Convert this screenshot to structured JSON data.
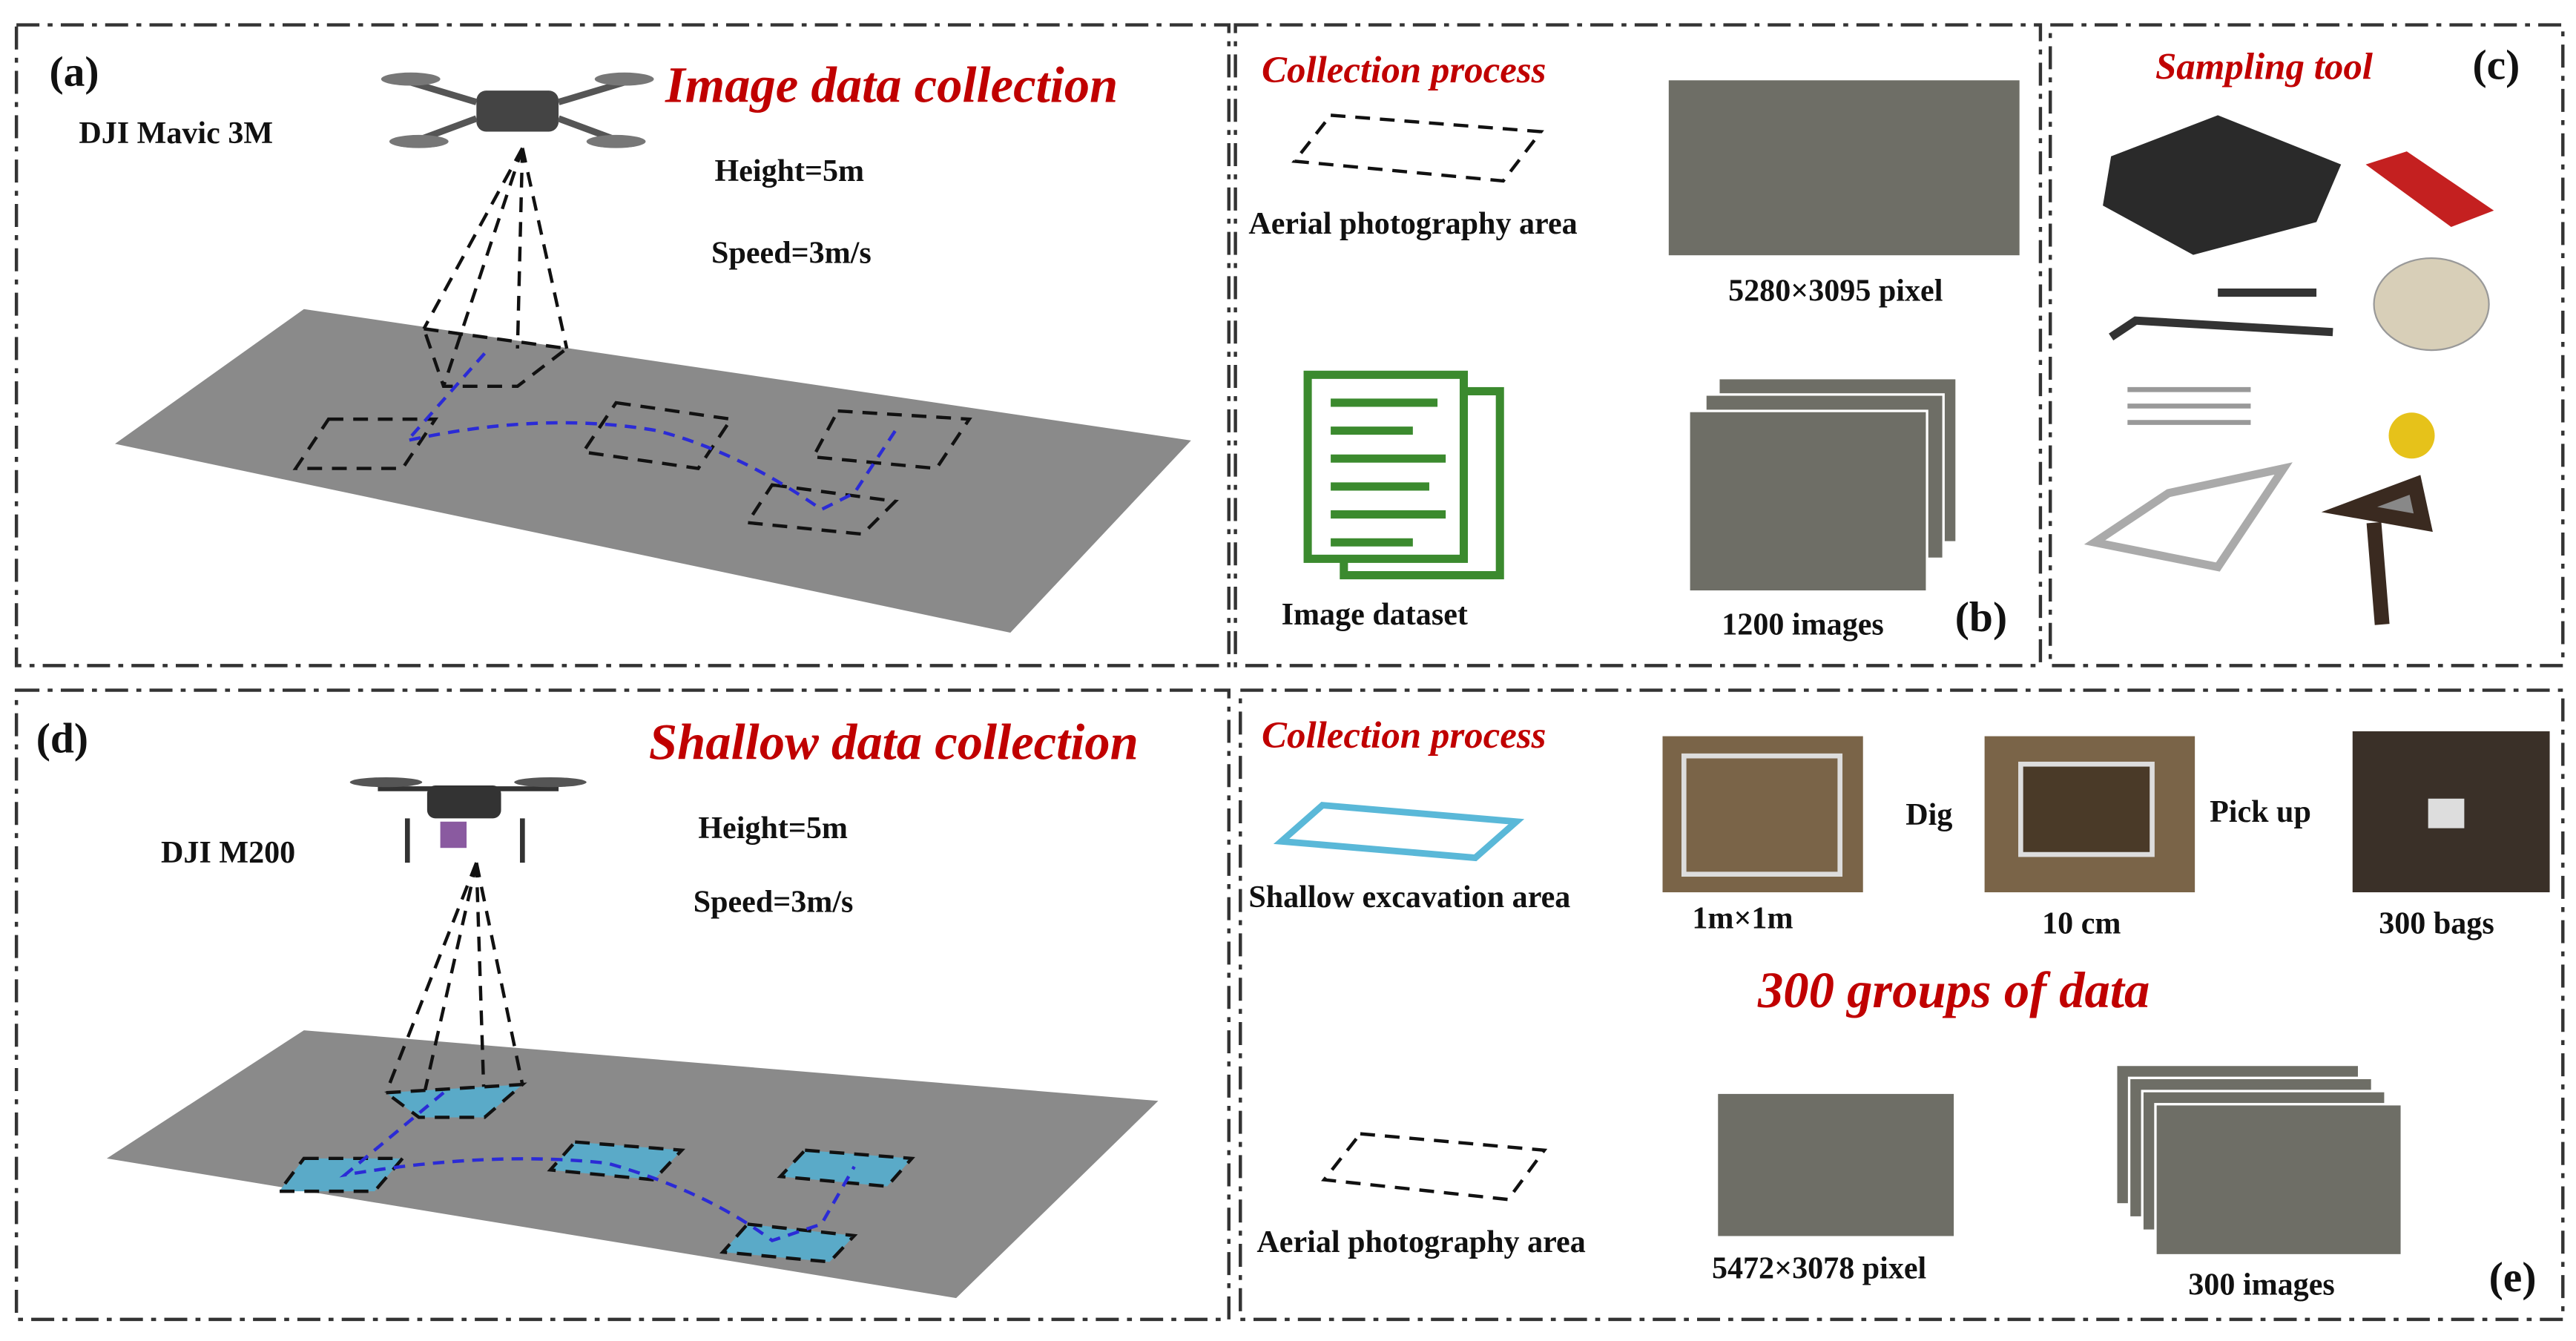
{
  "panel_a": {
    "label": "(a)",
    "drone": "DJI Mavic 3M",
    "title": "Image data collection",
    "height": "Height=5m",
    "speed": "Speed=3m/s"
  },
  "panel_b": {
    "label": "(b)",
    "title": "Collection process",
    "area": "Aerial photography area",
    "resolution": "5280×3095 pixel",
    "dataset": "Image dataset",
    "count": "1200 images"
  },
  "panel_c": {
    "label": "(c)",
    "title": "Sampling tool"
  },
  "panel_d": {
    "label": "(d)",
    "drone": "DJI M200",
    "title": "Shallow data collection",
    "height": "Height=5m",
    "speed": "Speed=3m/s"
  },
  "panel_e": {
    "label": "(e)",
    "title": "Collection process",
    "excavation": "Shallow excavation area",
    "size": "1m×1m",
    "dig": "Dig",
    "depth": "10 cm",
    "pick": "Pick up",
    "bags": "300 bags",
    "groups": "300 groups of data",
    "area": "Aerial photography area",
    "resolution": "5472×3078 pixel",
    "count": "300 images"
  }
}
